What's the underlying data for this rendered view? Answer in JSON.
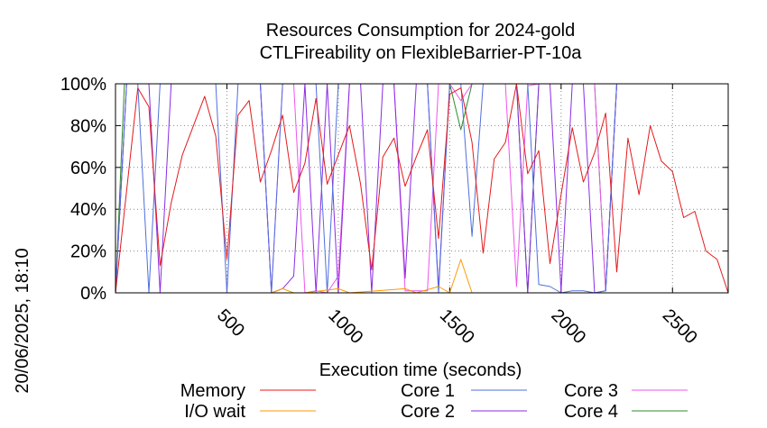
{
  "chart_data": {
    "type": "line",
    "title": [
      "Resources Consumption for 2024-gold",
      "CTLFireability on FlexibleBarrier-PT-10a"
    ],
    "xlabel": "Execution time (seconds)",
    "ylabel": "",
    "side_label": "20/06/2025, 18:10",
    "xlim": [
      0,
      2750
    ],
    "ylim": [
      0,
      100
    ],
    "xticks": [
      500,
      1000,
      1500,
      2000,
      2500
    ],
    "yticks": [
      0,
      20,
      40,
      60,
      80,
      100
    ],
    "ytick_labels": [
      "0%",
      "20%",
      "40%",
      "60%",
      "80%",
      "100%"
    ],
    "grid": true,
    "legend_position": "bottom",
    "series": [
      {
        "name": "Memory",
        "color": "#e41a1c",
        "x": [
          0,
          100,
          150,
          200,
          250,
          300,
          350,
          400,
          450,
          500,
          550,
          600,
          650,
          700,
          750,
          800,
          850,
          900,
          950,
          1000,
          1050,
          1100,
          1150,
          1200,
          1250,
          1300,
          1350,
          1400,
          1450,
          1500,
          1550,
          1600,
          1650,
          1700,
          1750,
          1800,
          1850,
          1900,
          1950,
          2000,
          2050,
          2100,
          2150,
          2200,
          2250,
          2300,
          2350,
          2400,
          2450,
          2500,
          2550,
          2600,
          2650,
          2700,
          2750
        ],
        "y": [
          0,
          98,
          89,
          13,
          43,
          66,
          80,
          94,
          75,
          16,
          85,
          92,
          53,
          68,
          85,
          48,
          62,
          93,
          52,
          66,
          80,
          52,
          11,
          65,
          74,
          51,
          65,
          78,
          26,
          95,
          98,
          72,
          19,
          64,
          72,
          100,
          57,
          68,
          14,
          47,
          79,
          53,
          67,
          86,
          10,
          74,
          47,
          80,
          63,
          58,
          36,
          39,
          20,
          16,
          0
        ]
      },
      {
        "name": "I/O wait",
        "color": "#ff9900",
        "x": [
          0,
          650,
          700,
          750,
          800,
          850,
          1000,
          1050,
          1300,
          1350,
          1450,
          1500,
          1550,
          1600,
          2750
        ],
        "y": [
          0,
          0,
          0,
          2,
          0,
          0,
          2,
          0,
          2,
          0,
          3,
          0,
          16,
          0,
          0
        ]
      },
      {
        "name": "Core 1",
        "color": "#4f6fdc",
        "x": [
          0,
          50,
          100,
          150,
          200,
          250,
          300,
          350,
          400,
          450,
          500,
          550,
          600,
          650,
          700,
          750,
          800,
          850,
          900,
          950,
          1000,
          1050,
          1100,
          1150,
          1200,
          1250,
          1300,
          1350,
          1400,
          1450,
          1500,
          1550,
          1600,
          1650,
          1700,
          1750,
          1800,
          1850,
          1900,
          1950,
          2000,
          2050,
          2100,
          2150,
          2200,
          2250,
          2300,
          2750
        ],
        "y": [
          0,
          100,
          100,
          0,
          100,
          100,
          100,
          100,
          100,
          100,
          0,
          100,
          100,
          100,
          0,
          100,
          100,
          100,
          100,
          0,
          100,
          100,
          100,
          100,
          100,
          100,
          100,
          100,
          100,
          0,
          100,
          100,
          27,
          100,
          100,
          100,
          100,
          100,
          4,
          3,
          0,
          1,
          1,
          0,
          1,
          100,
          100,
          100
        ]
      },
      {
        "name": "Core 2",
        "color": "#8a2be2",
        "x": [
          0,
          50,
          100,
          150,
          200,
          250,
          300,
          350,
          400,
          450,
          500,
          550,
          600,
          650,
          700,
          750,
          800,
          850,
          900,
          950,
          1000,
          1050,
          1100,
          1150,
          1200,
          1250,
          1300,
          1350,
          1400,
          1450,
          1500,
          1550,
          1600,
          1650,
          1700,
          1750,
          1800,
          1850,
          1900,
          1950,
          2000,
          2050,
          2100,
          2150,
          2200,
          2250,
          2300,
          2750
        ],
        "y": [
          0,
          100,
          100,
          100,
          0,
          100,
          100,
          100,
          100,
          100,
          100,
          100,
          100,
          100,
          0,
          2,
          8,
          100,
          0,
          100,
          0,
          100,
          100,
          0,
          100,
          100,
          7,
          100,
          100,
          2,
          100,
          100,
          100,
          100,
          100,
          100,
          100,
          0,
          100,
          100,
          1,
          100,
          100,
          0,
          1,
          100,
          100,
          100
        ]
      },
      {
        "name": "Core 3",
        "color": "#ee55ee",
        "x": [
          0,
          50,
          100,
          150,
          200,
          250,
          300,
          350,
          400,
          450,
          500,
          550,
          600,
          650,
          700,
          750,
          800,
          850,
          900,
          950,
          1000,
          1050,
          1100,
          1150,
          1200,
          1250,
          1300,
          1350,
          1400,
          1450,
          1500,
          1550,
          1600,
          1650,
          1700,
          1750,
          1800,
          1850,
          1900,
          1950,
          2000,
          2050,
          2100,
          2150,
          2200,
          2250,
          2300,
          2750
        ],
        "y": [
          0,
          100,
          100,
          100,
          100,
          100,
          100,
          100,
          100,
          100,
          100,
          100,
          100,
          100,
          0,
          100,
          100,
          0,
          1,
          0,
          8,
          100,
          100,
          100,
          100,
          100,
          1,
          1,
          1,
          100,
          100,
          92,
          100,
          100,
          100,
          100,
          3,
          99,
          100,
          100,
          100,
          100,
          100,
          100,
          1,
          100,
          100,
          100
        ]
      },
      {
        "name": "Core 4",
        "color": "#2e8b2e",
        "x": [
          0,
          40,
          100,
          150,
          200,
          250,
          300,
          350,
          400,
          450,
          500,
          550,
          600,
          650,
          700,
          750,
          800,
          850,
          900,
          950,
          1000,
          1050,
          1100,
          1150,
          1200,
          1250,
          1300,
          1350,
          1400,
          1450,
          1500,
          1550,
          1600,
          1650,
          1700,
          1750,
          1800,
          1850,
          1900,
          1950,
          2000,
          2050,
          2100,
          2150,
          2200,
          2250,
          2300,
          2750
        ],
        "y": [
          0,
          100,
          100,
          100,
          100,
          100,
          100,
          100,
          100,
          100,
          100,
          100,
          100,
          100,
          100,
          100,
          100,
          100,
          100,
          100,
          100,
          100,
          100,
          100,
          100,
          100,
          100,
          100,
          100,
          100,
          100,
          78,
          100,
          100,
          100,
          100,
          100,
          0,
          100,
          100,
          100,
          100,
          100,
          100,
          1,
          100,
          100,
          100
        ]
      }
    ]
  }
}
